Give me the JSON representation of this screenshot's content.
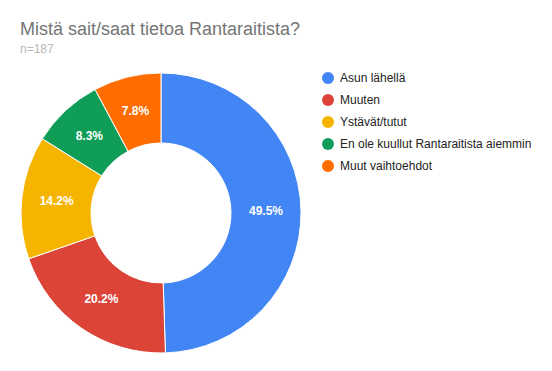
{
  "chart_data": {
    "type": "pie",
    "title": "Mistä sait/saat tietoa Rantaraitista?",
    "subtitle": "n=187",
    "categories": [
      "Asun lähellä",
      "Muuten",
      "Ystävät/tutut",
      "En ole kuullut Rantaraitista aiemmin",
      "Muut vaihtoehdot"
    ],
    "values": [
      49.5,
      20.2,
      14.2,
      8.3,
      7.8
    ],
    "value_labels": [
      "49.5%",
      "20.2%",
      "14.2%",
      "8.3%",
      "7.8%"
    ],
    "colors": [
      "#4285f4",
      "#db4437",
      "#f4b400",
      "#0f9d58",
      "#ff6d00"
    ],
    "data_labels": true,
    "legend": "right"
  }
}
